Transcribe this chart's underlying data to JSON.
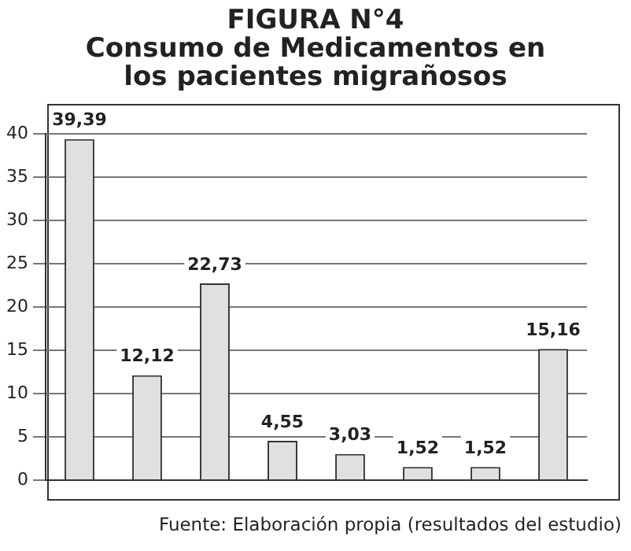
{
  "chart_data": {
    "type": "bar",
    "title": "FIGURA N°4",
    "subtitle": "Consumo de Medicamentos en los pacientes migrañosos",
    "categories": [
      null,
      null,
      null,
      null,
      null,
      null,
      null,
      null
    ],
    "values": [
      39.39,
      12.12,
      22.73,
      4.55,
      3.03,
      1.52,
      1.52,
      15.16
    ],
    "value_labels": [
      "39,39",
      "12,12",
      "22,73",
      "4,55",
      "3,03",
      "1,52",
      "1,52",
      "15,16"
    ],
    "color": "#e0e0e0",
    "ylim": [
      0,
      40
    ],
    "yticks": [
      0,
      5,
      10,
      15,
      20,
      25,
      30,
      35,
      40
    ],
    "grid": "y",
    "annotations": [
      "Fuente: Elaboración propia (resultados del estudio)"
    ]
  }
}
